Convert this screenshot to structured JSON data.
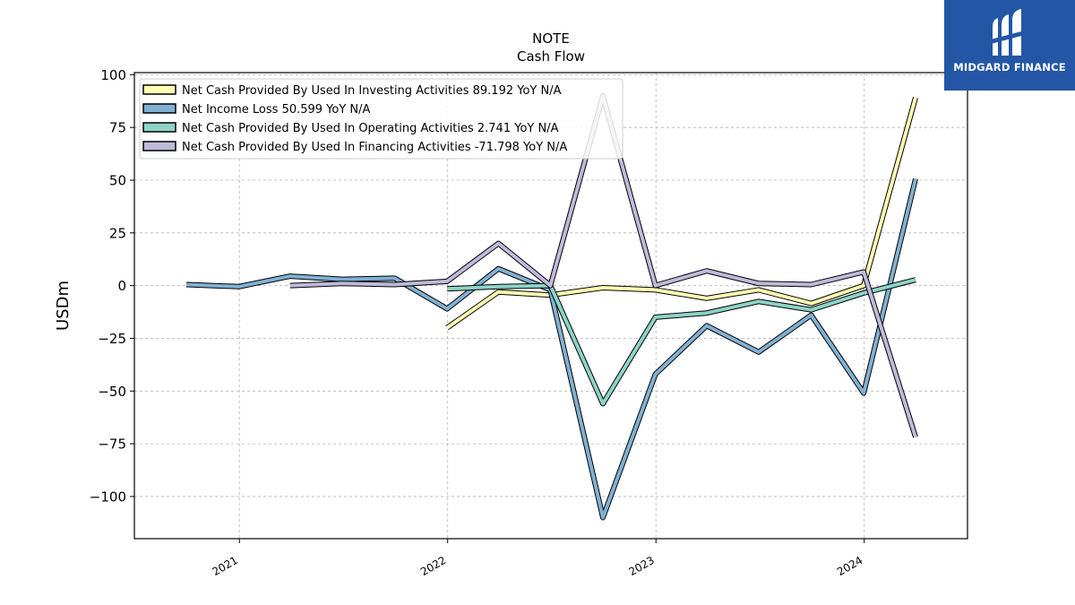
{
  "logo": {
    "text": "MIDGARD FINANCE",
    "icon": "midgard-m-icon",
    "background": "#2456a6"
  },
  "chart_data": {
    "type": "line",
    "title": "NOTE",
    "subtitle": "Cash Flow",
    "xlabel": "",
    "ylabel": "USDm",
    "ylim": [
      -120,
      101
    ],
    "yticks": [
      100,
      75,
      50,
      25,
      0,
      -25,
      -50,
      -75,
      -100
    ],
    "ytick_labels": [
      "100",
      "75",
      "50",
      "25",
      "0",
      "−25",
      "−50",
      "−75",
      "−100"
    ],
    "xticks": [
      "2021-01-01",
      "2022-01-01",
      "2023-01-01",
      "2024-01-01"
    ],
    "xtick_labels": [
      "2021",
      "2022",
      "2023",
      "2024"
    ],
    "xlim": [
      "2020-07-01",
      "2024-06-30"
    ],
    "grid": true,
    "legend_position": "upper-left",
    "series": [
      {
        "name": "Net Cash Provided By Used In Investing Activities  89.192 YoY N/A",
        "color": "#ffffb3",
        "points": [
          [
            "2021-12-31",
            -20
          ],
          [
            "2022-03-31",
            -3
          ],
          [
            "2022-06-30",
            -4.5
          ],
          [
            "2022-09-30",
            -1
          ],
          [
            "2022-12-31",
            -2
          ],
          [
            "2023-03-31",
            -6
          ],
          [
            "2023-06-30",
            -2
          ],
          [
            "2023-09-30",
            -8.5
          ],
          [
            "2023-12-31",
            0
          ],
          [
            "2024-03-31",
            89.192
          ]
        ]
      },
      {
        "name": "Net Income Loss  50.599 YoY N/A",
        "color": "#80b1d3",
        "points": [
          [
            "2020-09-30",
            0.5
          ],
          [
            "2020-12-31",
            -0.5
          ],
          [
            "2021-03-31",
            4.5
          ],
          [
            "2021-06-30",
            3
          ],
          [
            "2021-09-30",
            3.5
          ],
          [
            "2021-12-31",
            -11
          ],
          [
            "2022-03-31",
            8
          ],
          [
            "2022-06-30",
            -2
          ],
          [
            "2022-09-30",
            -110
          ],
          [
            "2022-12-31",
            -42
          ],
          [
            "2023-03-31",
            -19
          ],
          [
            "2023-06-30",
            -31.5
          ],
          [
            "2023-09-30",
            -14
          ],
          [
            "2023-12-31",
            -51
          ],
          [
            "2024-03-31",
            50.599
          ]
        ]
      },
      {
        "name": "Net Cash Provided By Used In Operating Activities  2.741 YoY N/A",
        "color": "#8dd3c7",
        "points": [
          [
            "2021-12-31",
            -1.5
          ],
          [
            "2022-03-31",
            -0.5
          ],
          [
            "2022-06-30",
            0
          ],
          [
            "2022-09-30",
            -56
          ],
          [
            "2022-12-31",
            -15
          ],
          [
            "2023-03-31",
            -13
          ],
          [
            "2023-06-30",
            -7.5
          ],
          [
            "2023-09-30",
            -11.5
          ],
          [
            "2023-12-31",
            -3.5
          ],
          [
            "2024-03-31",
            2.741
          ]
        ]
      },
      {
        "name": "Net Cash Provided By Used In Financing Activities  -71.798 YoY N/A",
        "color": "#bebada",
        "points": [
          [
            "2021-03-31",
            0
          ],
          [
            "2021-06-30",
            1
          ],
          [
            "2021-09-30",
            0.5
          ],
          [
            "2021-12-31",
            2
          ],
          [
            "2022-03-31",
            20
          ],
          [
            "2022-06-30",
            0
          ],
          [
            "2022-09-30",
            90
          ],
          [
            "2022-12-31",
            0
          ],
          [
            "2023-03-31",
            7
          ],
          [
            "2023-06-30",
            1
          ],
          [
            "2023-09-30",
            0.5
          ],
          [
            "2023-12-31",
            6.5
          ],
          [
            "2024-03-31",
            -71.798
          ]
        ]
      }
    ]
  }
}
